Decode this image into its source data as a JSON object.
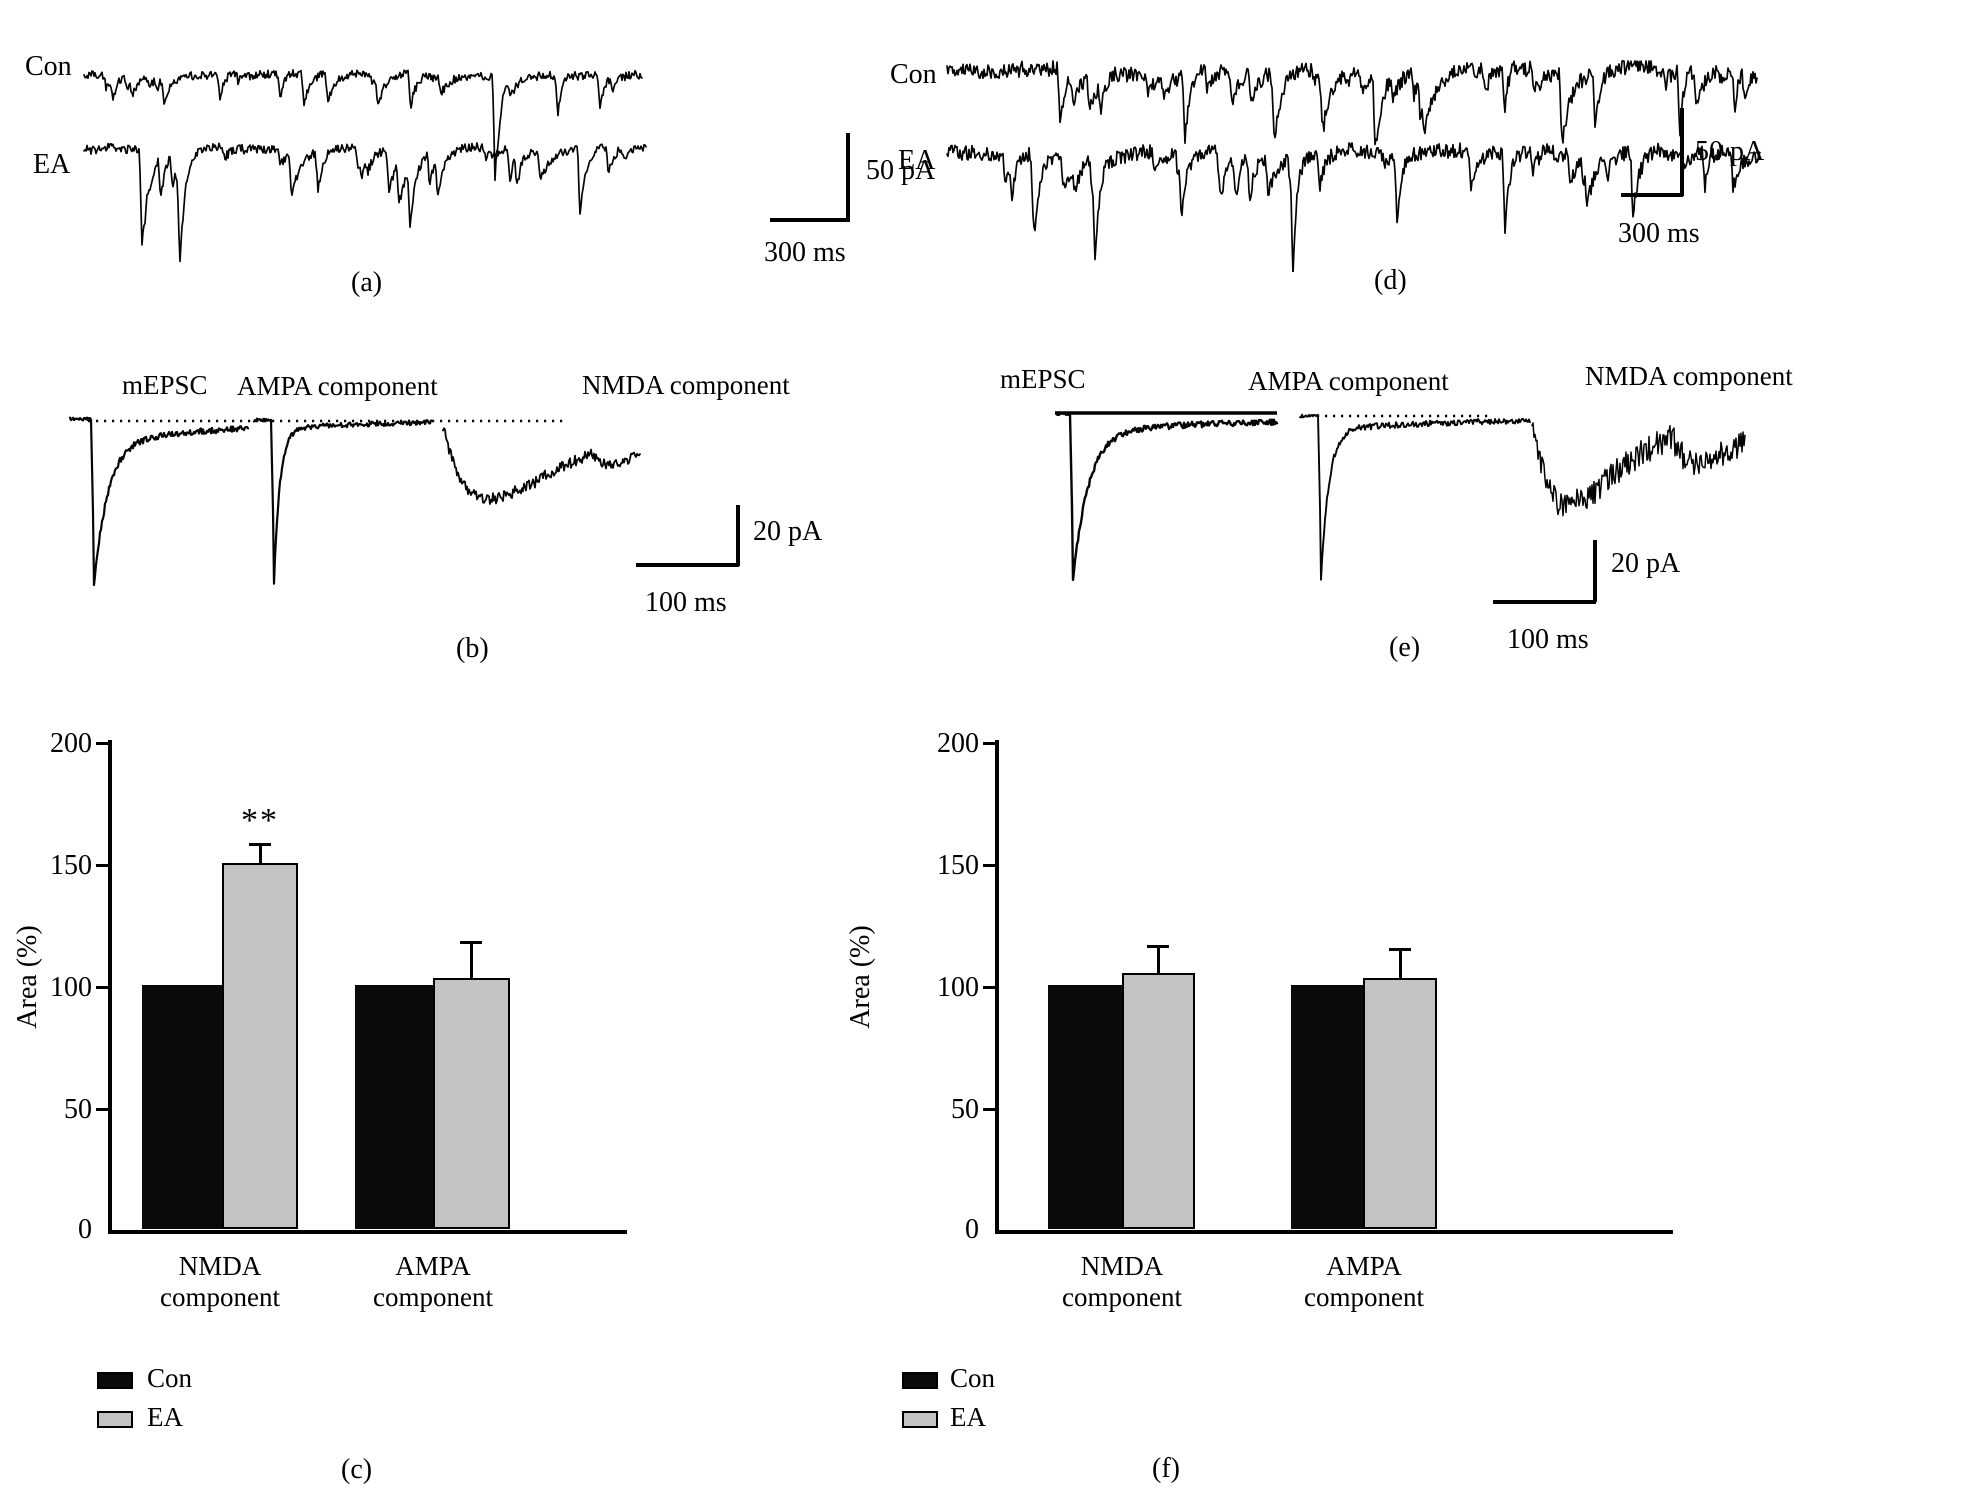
{
  "panels": {
    "a": {
      "label": "(a)",
      "trace1": "Con",
      "trace2": "EA",
      "scale_v": "50 pA",
      "scale_h": "300 ms"
    },
    "b": {
      "label": "(b)",
      "t1": "mEPSC",
      "t2": "AMPA component",
      "t3": "NMDA component",
      "scale_v": "20 pA",
      "scale_h": "100 ms"
    },
    "c": {
      "label": "(c)",
      "cat1": [
        "NMDA",
        "component"
      ],
      "cat2": [
        "AMPA",
        "component"
      ]
    },
    "d": {
      "label": "(d)",
      "trace1": "Con",
      "trace2": "EA",
      "scale_v": "50 pA",
      "scale_h": "300 ms"
    },
    "e": {
      "label": "(e)",
      "t1": "mEPSC",
      "t2": "AMPA component",
      "t3": "NMDA component",
      "scale_v": "20 pA",
      "scale_h": "100 ms"
    },
    "f": {
      "label": "(f)",
      "cat1": [
        "NMDA",
        "component"
      ],
      "cat2": [
        "AMPA",
        "component"
      ]
    }
  },
  "colors": {
    "con": "#0a0a0a",
    "ea": "#c3c3c3",
    "ink": "#000000"
  },
  "chart_data": [
    {
      "panel": "c",
      "type": "bar",
      "title": "",
      "xlabel": "",
      "ylabel": "Area (%)",
      "ylim": [
        0,
        200
      ],
      "yticks": [
        200,
        150,
        100,
        50,
        0
      ],
      "grid": false,
      "categories": [
        "NMDA component",
        "AMPA component"
      ],
      "series": [
        {
          "name": "Con",
          "color": "#0a0a0a",
          "values": [
            100,
            100
          ],
          "errors": [
            0,
            0
          ]
        },
        {
          "name": "EA",
          "color": "#c3c3c3",
          "values": [
            150,
            103
          ],
          "errors": [
            7,
            14
          ]
        }
      ],
      "annotations": [
        {
          "text": "**",
          "category": "NMDA component",
          "series": "EA",
          "meaning": "significant"
        }
      ],
      "legend_position": "bottom-left"
    },
    {
      "panel": "f",
      "type": "bar",
      "title": "",
      "xlabel": "",
      "ylabel": "Area (%)",
      "ylim": [
        0,
        200
      ],
      "yticks": [
        200,
        150,
        100,
        50,
        0
      ],
      "grid": false,
      "categories": [
        "NMDA component",
        "AMPA component"
      ],
      "series": [
        {
          "name": "Con",
          "color": "#0a0a0a",
          "values": [
            100,
            100
          ],
          "errors": [
            0,
            0
          ]
        },
        {
          "name": "EA",
          "color": "#c3c3c3",
          "values": [
            105,
            103
          ],
          "errors": [
            10,
            11
          ]
        }
      ],
      "annotations": [],
      "legend_position": "bottom-left"
    }
  ]
}
